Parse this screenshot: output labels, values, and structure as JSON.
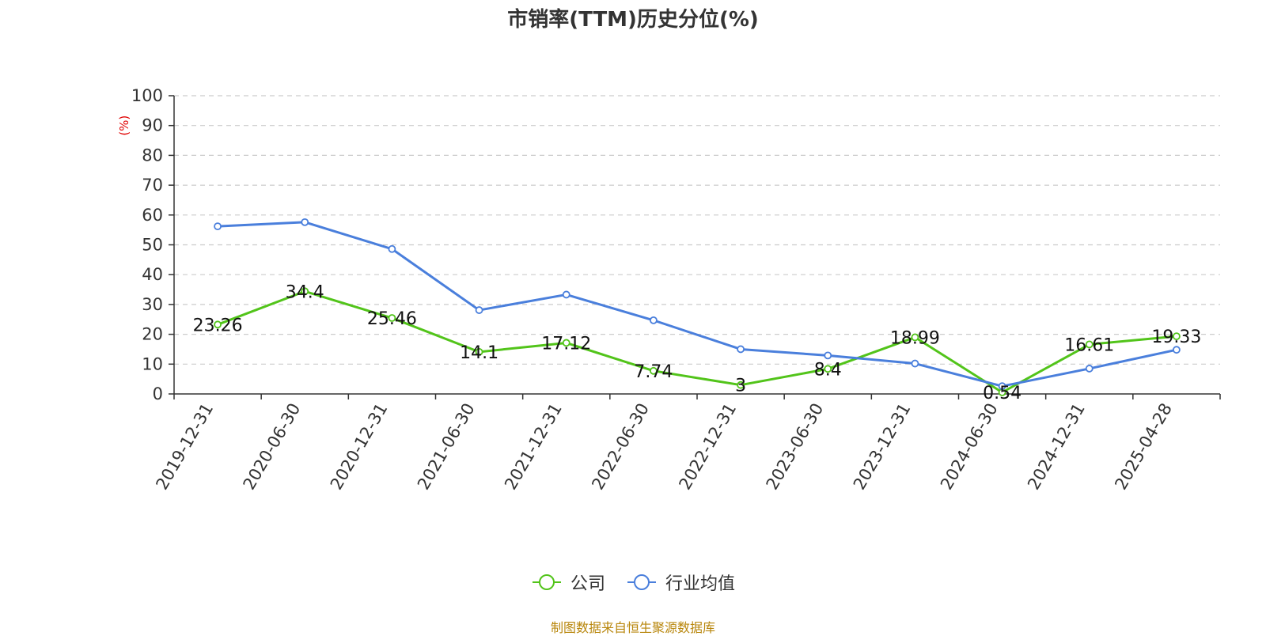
{
  "chart_data": {
    "type": "line",
    "title": "市销率(TTM)历史分位(%)",
    "ylabel": "(%)",
    "xlabel": "",
    "ylim": [
      0,
      100
    ],
    "yticks": [
      0,
      10,
      20,
      30,
      40,
      50,
      60,
      70,
      80,
      90,
      100
    ],
    "grid": true,
    "legend_position": "bottom",
    "categories": [
      "2019-12-31",
      "2020-06-30",
      "2020-12-31",
      "2021-06-30",
      "2021-12-31",
      "2022-06-30",
      "2022-12-31",
      "2023-06-30",
      "2023-12-31",
      "2024-06-30",
      "2024-12-31",
      "2025-04-28"
    ],
    "series": [
      {
        "name": "公司",
        "color": "#52c41a",
        "values": [
          23.26,
          34.4,
          25.46,
          14.1,
          17.12,
          7.74,
          3,
          8.4,
          18.99,
          0.54,
          16.61,
          19.33
        ],
        "data_labels": [
          "23.26",
          "34.4",
          "25.46",
          "14.1",
          "17.12",
          "7.74",
          "3",
          "8.4",
          "18.99",
          "0.54",
          "16.61",
          "19.33"
        ]
      },
      {
        "name": "行业均值",
        "color": "#4a7fdc",
        "values": [
          56.2,
          57.6,
          48.6,
          28.1,
          33.3,
          24.7,
          15.0,
          12.9,
          10.2,
          2.6,
          8.5,
          14.8
        ]
      }
    ],
    "source": "制图数据来自恒生聚源数据库"
  }
}
